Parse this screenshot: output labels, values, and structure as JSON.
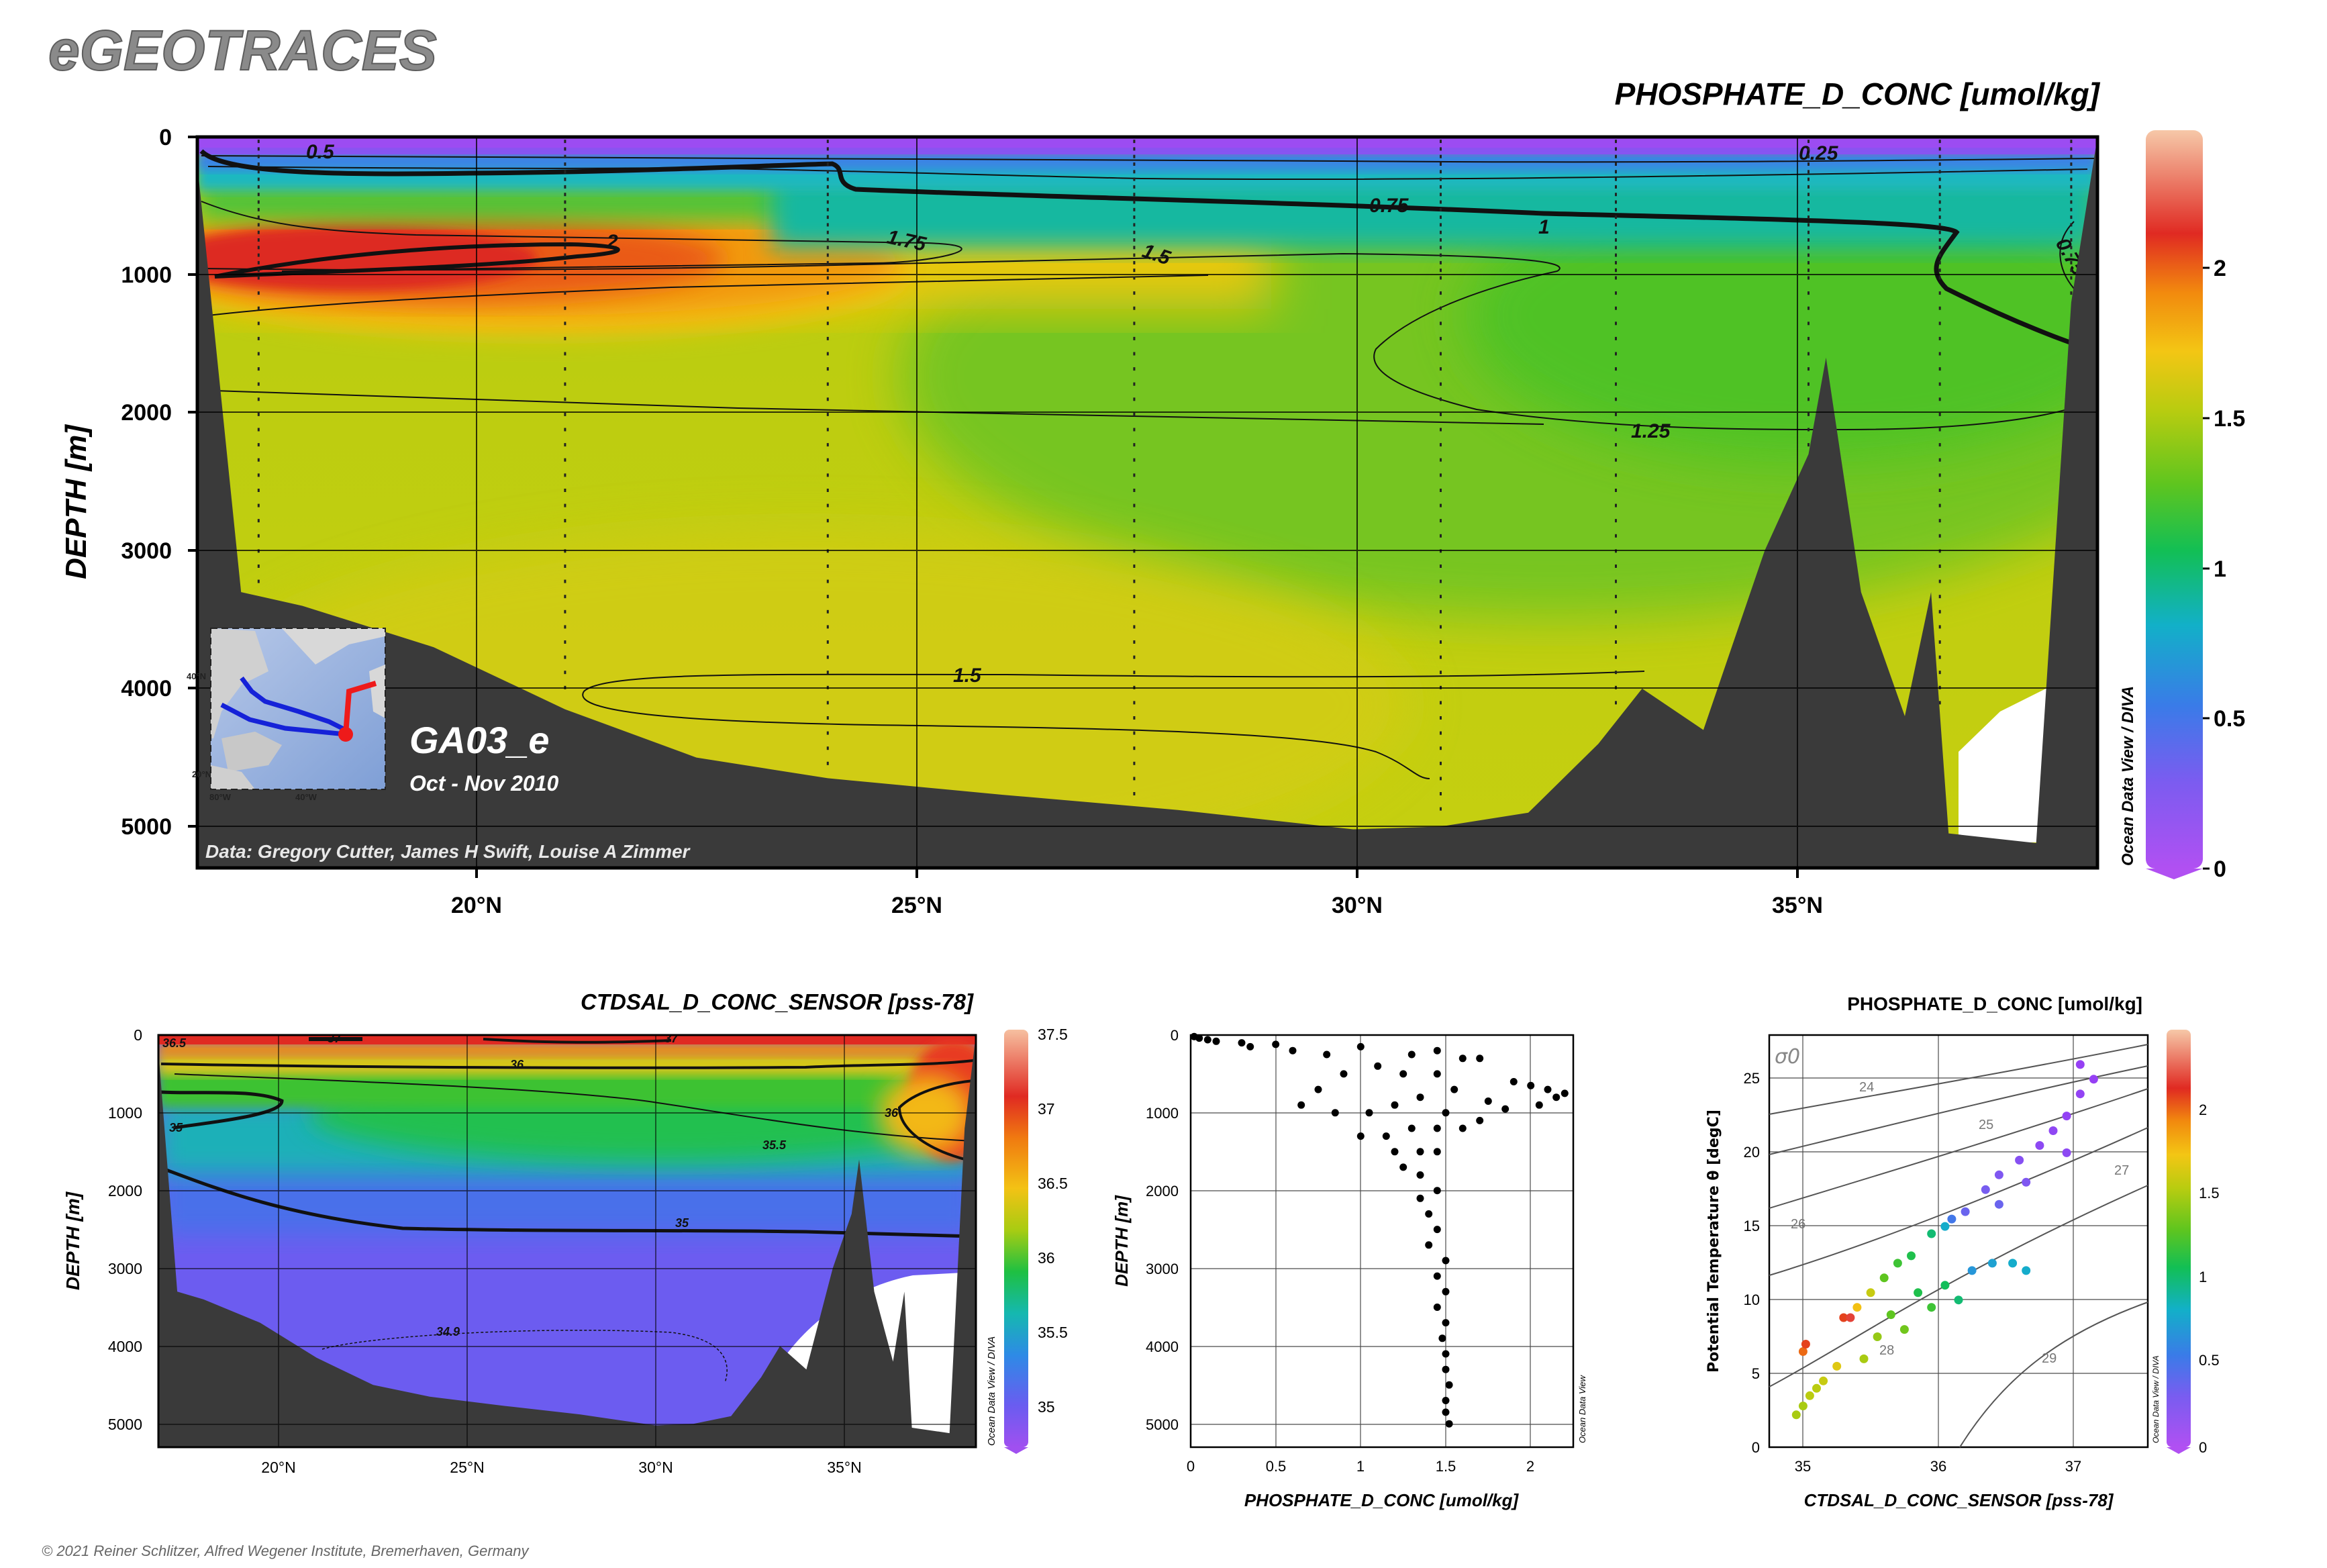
{
  "app_title": "eGEOTRACES",
  "copyright": "© 2021 Reiner Schlitzer, Alfred Wegener Institute, Bremerhaven, Germany",
  "watermark": "Ocean Data View / DIVA",
  "watermark_short": "Ocean Data View",
  "colors": {
    "title_gray": "#8a8a8a",
    "bathymetry": "#3a3a3a",
    "scale_stops": [
      "#9a3cf5",
      "#7a5cf0",
      "#3a7be8",
      "#12b0c8",
      "#12bf55",
      "#5ec51f",
      "#b8cc10",
      "#f3c614",
      "#f28a0e",
      "#e02a22",
      "#f2b8a6"
    ]
  },
  "section": {
    "title": "PHOSPHATE_D_CONC [umol/kg]",
    "ylabel": "DEPTH [m]",
    "y_ticks": [
      "0",
      "1000",
      "2000",
      "3000",
      "4000",
      "5000"
    ],
    "x_ticks": [
      "20°N",
      "25°N",
      "30°N",
      "35°N"
    ],
    "cruise": "GA03_e",
    "period": "Oct - Nov 2010",
    "credit": "Data: Gregory Cutter, James H Swift, Louise A Zimmer",
    "colorbar_ticks": [
      "2",
      "1.5",
      "1",
      "0.5",
      "0"
    ],
    "contour_labels": [
      "0.5",
      "0.25",
      "0.75",
      "1",
      "2",
      "1.75",
      "1.5",
      "1.25",
      "0.75",
      "1.5"
    ],
    "inset": {
      "lat_labels": [
        "40°N",
        "20°N"
      ],
      "lon_labels": [
        "80°W",
        "40°W"
      ]
    }
  },
  "salinity_section": {
    "title": "CTDSAL_D_CONC_SENSOR [pss-78]",
    "ylabel": "DEPTH [m]",
    "y_ticks": [
      "0",
      "1000",
      "2000",
      "3000",
      "4000",
      "5000"
    ],
    "x_ticks": [
      "20°N",
      "25°N",
      "30°N",
      "35°N"
    ],
    "colorbar_ticks": [
      "37.5",
      "37",
      "36.5",
      "36",
      "35.5",
      "35"
    ],
    "contour_labels": [
      "36.5",
      "37",
      "37",
      "36",
      "35",
      "36",
      "35.5",
      "35",
      "34.9"
    ]
  },
  "profile": {
    "xlabel": "PHOSPHATE_D_CONC [umol/kg]",
    "ylabel": "DEPTH [m]",
    "x_ticks": [
      "0",
      "0.5",
      "1",
      "1.5",
      "2"
    ],
    "y_ticks": [
      "0",
      "1000",
      "2000",
      "3000",
      "4000",
      "5000"
    ]
  },
  "ts": {
    "title": "PHOSPHATE_D_CONC [umol/kg]",
    "xlabel": "CTDSAL_D_CONC_SENSOR [pss-78]",
    "ylabel": "Potential Temperature θ [degC]",
    "sigma_label": "σ0",
    "x_ticks": [
      "35",
      "36",
      "37"
    ],
    "y_ticks": [
      "0",
      "5",
      "10",
      "15",
      "20",
      "25"
    ],
    "isopycnal_labels": [
      "24",
      "25",
      "26",
      "27",
      "28",
      "29"
    ],
    "colorbar_ticks": [
      "2",
      "1.5",
      "1",
      "0.5",
      "0"
    ]
  },
  "chart_data": [
    {
      "type": "heatmap",
      "title": "PHOSPHATE_D_CONC [umol/kg]",
      "xlabel": "",
      "ylabel": "DEPTH [m]",
      "xlim": [
        16.8,
        38.5
      ],
      "ylim": [
        5300,
        0
      ],
      "color_range": [
        0,
        2.4
      ],
      "depth_levels_m": [
        0,
        200,
        500,
        700,
        1000,
        1500,
        2000,
        3000,
        4000,
        5000
      ],
      "profiles": [
        {
          "lat": 17.5,
          "phosphate": [
            0.05,
            0.5,
            1.7,
            2.1,
            1.9,
            1.55,
            1.45,
            1.45,
            1.5,
            1.5
          ]
        },
        {
          "lat": 21,
          "phosphate": [
            0.03,
            0.4,
            1.6,
            2.05,
            1.85,
            1.55,
            1.45,
            1.45,
            1.5,
            1.5
          ]
        },
        {
          "lat": 24,
          "phosphate": [
            0.03,
            0.3,
            1.4,
            1.9,
            1.8,
            1.5,
            1.4,
            1.45,
            1.48,
            1.5
          ]
        },
        {
          "lat": 27.5,
          "phosphate": [
            0.02,
            0.25,
            1.1,
            1.5,
            1.55,
            1.4,
            1.3,
            1.38,
            1.45,
            1.48
          ]
        },
        {
          "lat": 31,
          "phosphate": [
            0.02,
            0.2,
            0.8,
            1.2,
            1.35,
            1.25,
            1.2,
            1.3,
            1.4,
            1.45
          ]
        },
        {
          "lat": 33,
          "phosphate": [
            0.02,
            0.2,
            0.75,
            1.1,
            1.25,
            1.15,
            1.15,
            1.25,
            1.35,
            1.45
          ]
        },
        {
          "lat": 35.2,
          "phosphate": [
            0.02,
            0.25,
            0.8,
            1.05,
            1.15,
            1.1,
            1.15,
            1.2,
            1.3,
            1.4
          ]
        },
        {
          "lat": 36.7,
          "phosphate": [
            0.03,
            0.3,
            0.7,
            0.9,
            1.0,
            1.05,
            1.1,
            1.2,
            1.25,
            1.3
          ]
        },
        {
          "lat": 38.2,
          "phosphate": [
            0.05,
            0.35,
            0.6,
            0.7,
            0.85,
            1.0,
            1.1,
            1.2,
            1.25,
            1.3
          ]
        }
      ],
      "bathymetry_m": [
        [
          16.8,
          200
        ],
        [
          17.3,
          3300
        ],
        [
          18,
          3400
        ],
        [
          19.5,
          3700
        ],
        [
          21,
          4150
        ],
        [
          22.5,
          4500
        ],
        [
          24,
          4650
        ],
        [
          26,
          4770
        ],
        [
          28,
          4880
        ],
        [
          30,
          5020
        ],
        [
          31,
          5000
        ],
        [
          32,
          4900
        ],
        [
          32.8,
          4400
        ],
        [
          33.3,
          4000
        ],
        [
          34,
          4300
        ],
        [
          34.7,
          3000
        ],
        [
          35.2,
          2300
        ],
        [
          35.4,
          1600
        ],
        [
          35.8,
          3300
        ],
        [
          36.3,
          4200
        ],
        [
          36.6,
          3300
        ],
        [
          36.8,
          5050
        ],
        [
          37.8,
          5120
        ],
        [
          38.2,
          1200
        ],
        [
          38.5,
          0
        ]
      ],
      "station_latitudes": [
        17.5,
        21,
        24,
        27.5,
        31,
        33,
        35.2,
        36.7,
        38.2
      ]
    },
    {
      "type": "heatmap",
      "title": "CTDSAL_D_CONC_SENSOR [pss-78]",
      "xlabel": "",
      "ylabel": "DEPTH [m]",
      "xlim": [
        16.8,
        38.5
      ],
      "ylim": [
        5300,
        0
      ],
      "color_range": [
        34.8,
        37.6
      ],
      "depth_levels_m": [
        0,
        200,
        500,
        1000,
        1500,
        2000,
        3000,
        4000,
        5000
      ],
      "profiles": [
        {
          "lat": 17.5,
          "salinity": [
            36.6,
            36.2,
            35.3,
            34.9,
            35.0,
            35.0,
            34.95,
            34.9,
            34.9
          ]
        },
        {
          "lat": 24,
          "salinity": [
            37.2,
            36.5,
            35.6,
            35.1,
            35.05,
            35.0,
            34.95,
            34.9,
            34.9
          ]
        },
        {
          "lat": 31,
          "salinity": [
            37.2,
            36.7,
            35.9,
            35.4,
            35.15,
            35.05,
            34.95,
            34.9,
            34.9
          ]
        },
        {
          "lat": 35.2,
          "salinity": [
            36.9,
            36.5,
            36.0,
            35.6,
            35.3,
            35.1,
            34.95,
            34.9,
            34.9
          ]
        },
        {
          "lat": 38.2,
          "salinity": [
            36.5,
            36.5,
            36.3,
            36.0,
            35.4,
            35.1,
            34.97,
            34.92,
            34.9
          ]
        }
      ]
    },
    {
      "type": "scatter",
      "title": "",
      "xlabel": "PHOSPHATE_D_CONC [umol/kg]",
      "ylabel": "DEPTH [m]",
      "xlim": [
        0,
        2.25
      ],
      "ylim": [
        5300,
        0
      ],
      "points": [
        [
          0.02,
          20
        ],
        [
          0.05,
          40
        ],
        [
          0.1,
          60
        ],
        [
          0.15,
          80
        ],
        [
          0.3,
          100
        ],
        [
          0.35,
          150
        ],
        [
          0.5,
          120
        ],
        [
          0.6,
          200
        ],
        [
          0.8,
          250
        ],
        [
          1.0,
          150
        ],
        [
          1.3,
          250
        ],
        [
          1.45,
          200
        ],
        [
          1.6,
          300
        ],
        [
          1.7,
          300
        ],
        [
          1.9,
          600
        ],
        [
          2.0,
          650
        ],
        [
          2.1,
          700
        ],
        [
          2.15,
          800
        ],
        [
          2.2,
          750
        ],
        [
          2.05,
          900
        ],
        [
          1.85,
          950
        ],
        [
          1.75,
          850
        ],
        [
          1.55,
          700
        ],
        [
          1.45,
          500
        ],
        [
          1.25,
          500
        ],
        [
          1.1,
          400
        ],
        [
          0.9,
          500
        ],
        [
          0.75,
          700
        ],
        [
          0.65,
          900
        ],
        [
          0.85,
          1000
        ],
        [
          1.05,
          1000
        ],
        [
          1.2,
          900
        ],
        [
          1.35,
          800
        ],
        [
          1.5,
          1000
        ],
        [
          1.7,
          1100
        ],
        [
          1.6,
          1200
        ],
        [
          1.45,
          1200
        ],
        [
          1.3,
          1200
        ],
        [
          1.15,
          1300
        ],
        [
          1.0,
          1300
        ],
        [
          1.2,
          1500
        ],
        [
          1.35,
          1500
        ],
        [
          1.45,
          1500
        ],
        [
          1.25,
          1700
        ],
        [
          1.35,
          1800
        ],
        [
          1.45,
          2000
        ],
        [
          1.35,
          2100
        ],
        [
          1.4,
          2300
        ],
        [
          1.45,
          2500
        ],
        [
          1.4,
          2700
        ],
        [
          1.5,
          2900
        ],
        [
          1.45,
          3100
        ],
        [
          1.5,
          3300
        ],
        [
          1.45,
          3500
        ],
        [
          1.5,
          3700
        ],
        [
          1.48,
          3900
        ],
        [
          1.5,
          4100
        ],
        [
          1.5,
          4300
        ],
        [
          1.52,
          4500
        ],
        [
          1.5,
          4700
        ],
        [
          1.5,
          4850
        ],
        [
          1.52,
          5000
        ]
      ]
    },
    {
      "type": "scatter",
      "title": "PHOSPHATE_D_CONC [umol/kg]",
      "xlabel": "CTDSAL_D_CONC_SENSOR [pss-78]",
      "ylabel": "Potential Temperature θ [degC]",
      "xlim": [
        34.7,
        37.5
      ],
      "ylim": [
        0,
        28
      ],
      "color_range": [
        0,
        2.4
      ],
      "points": [
        [
          34.9,
          2.2,
          1.4
        ],
        [
          34.95,
          2.8,
          1.4
        ],
        [
          35.0,
          3.5,
          1.45
        ],
        [
          35.05,
          4.0,
          1.45
        ],
        [
          35.1,
          4.5,
          1.5
        ],
        [
          35.2,
          5.5,
          1.6
        ],
        [
          34.95,
          6.5,
          2.0
        ],
        [
          34.97,
          7.0,
          2.1
        ],
        [
          35.25,
          8.8,
          2.1
        ],
        [
          35.3,
          8.8,
          2.2
        ],
        [
          35.35,
          9.5,
          1.7
        ],
        [
          35.45,
          10.5,
          1.5
        ],
        [
          35.55,
          11.5,
          1.2
        ],
        [
          35.65,
          12.5,
          1.1
        ],
        [
          35.75,
          13.0,
          1.0
        ],
        [
          35.9,
          14.5,
          0.9
        ],
        [
          36.0,
          15.0,
          0.7
        ],
        [
          36.05,
          15.5,
          0.45
        ],
        [
          36.15,
          16.0,
          0.3
        ],
        [
          36.3,
          17.5,
          0.25
        ],
        [
          36.4,
          18.5,
          0.2
        ],
        [
          36.55,
          19.5,
          0.15
        ],
        [
          36.7,
          20.5,
          0.1
        ],
        [
          36.8,
          21.5,
          0.08
        ],
        [
          36.9,
          22.5,
          0.05
        ],
        [
          37.0,
          24.0,
          0.05
        ],
        [
          37.1,
          25.0,
          0.03
        ],
        [
          36.2,
          12.0,
          0.6
        ],
        [
          36.35,
          12.5,
          0.65
        ],
        [
          36.5,
          12.5,
          0.7
        ],
        [
          36.6,
          12.0,
          0.7
        ],
        [
          35.6,
          9.0,
          1.2
        ],
        [
          35.8,
          10.5,
          1.0
        ],
        [
          36.0,
          11.0,
          0.95
        ],
        [
          35.5,
          7.5,
          1.35
        ],
        [
          35.7,
          8.0,
          1.25
        ],
        [
          35.9,
          9.5,
          1.1
        ],
        [
          36.1,
          10.0,
          0.9
        ],
        [
          35.4,
          6.0,
          1.4
        ],
        [
          36.4,
          16.5,
          0.3
        ],
        [
          36.6,
          18.0,
          0.2
        ],
        [
          36.9,
          20.0,
          0.1
        ],
        [
          37.0,
          26.0,
          0.03
        ]
      ]
    }
  ]
}
